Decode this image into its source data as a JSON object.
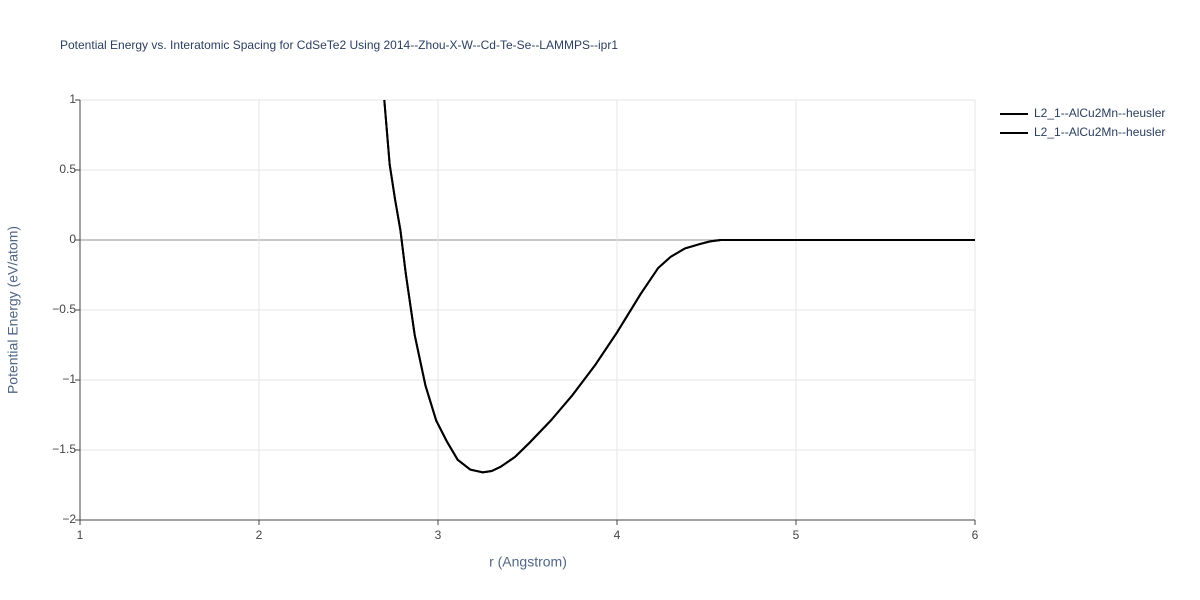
{
  "chart_data": {
    "type": "line",
    "title": "Potential Energy vs. Interatomic Spacing for CdSeTe2 Using 2014--Zhou-X-W--Cd-Te-Se--LAMMPS--ipr1",
    "x_label": "r (Angstrom)",
    "y_label": "Potential Energy (eV/atom)",
    "xlim": [
      1,
      6
    ],
    "ylim": [
      -2,
      1
    ],
    "xticks": [
      1,
      2,
      3,
      4,
      5,
      6
    ],
    "yticks": [
      {
        "value": -2,
        "label": "−2"
      },
      {
        "value": -1.5,
        "label": "−1.5"
      },
      {
        "value": -1,
        "label": "−1"
      },
      {
        "value": -0.5,
        "label": "−0.5"
      },
      0,
      0.5,
      1
    ],
    "grid": true,
    "legend": "top-right",
    "series": [
      {
        "name": "L2_1--AlCu2Mn--heusler",
        "color": "#000000",
        "x": [
          2.7,
          2.73,
          2.76,
          2.79,
          2.82,
          2.87,
          2.93,
          2.99,
          3.05,
          3.11,
          3.18,
          3.25,
          3.3,
          3.35,
          3.43,
          3.51,
          3.63,
          3.75,
          3.88,
          4.0,
          4.13,
          4.23,
          4.3,
          4.38,
          4.46,
          4.52,
          4.58,
          4.7,
          5,
          5.5,
          6
        ],
        "values": [
          1,
          0.54,
          0.29,
          0.07,
          -0.24,
          -0.68,
          -1.04,
          -1.29,
          -1.44,
          -1.57,
          -1.64,
          -1.66,
          -1.65,
          -1.62,
          -1.55,
          -1.45,
          -1.29,
          -1.11,
          -0.89,
          -0.66,
          -0.39,
          -0.2,
          -0.12,
          -0.06,
          -0.03,
          -0.01,
          0,
          0,
          0,
          0,
          0
        ]
      },
      {
        "name": "L2_1--AlCu2Mn--heusler",
        "color": "#000000",
        "x": [
          2.7,
          2.73,
          2.76,
          2.79,
          2.82,
          2.87,
          2.93,
          2.99,
          3.05,
          3.11,
          3.18,
          3.25,
          3.3,
          3.35,
          3.43,
          3.51,
          3.63,
          3.75,
          3.88,
          4.0,
          4.13,
          4.23,
          4.3,
          4.38,
          4.46,
          4.52,
          4.58,
          4.7,
          5,
          5.5,
          6
        ],
        "values": [
          1,
          0.54,
          0.29,
          0.07,
          -0.24,
          -0.68,
          -1.04,
          -1.29,
          -1.44,
          -1.57,
          -1.64,
          -1.66,
          -1.65,
          -1.62,
          -1.55,
          -1.45,
          -1.29,
          -1.11,
          -0.89,
          -0.66,
          -0.39,
          -0.2,
          -0.12,
          -0.06,
          -0.03,
          -0.01,
          0,
          0,
          0,
          0,
          0
        ]
      }
    ]
  }
}
